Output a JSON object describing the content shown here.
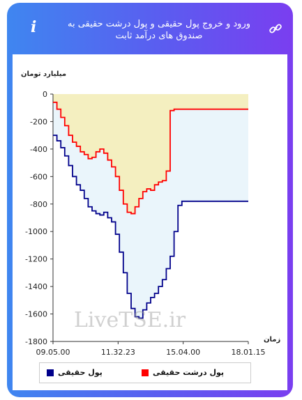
{
  "header": {
    "title": "ورود و خروج پول حقیقی و پول درشت حقیقی به صندوق های درآمد ثابت",
    "info_icon": "info-icon",
    "link_icon": "link-icon",
    "info_glyph": "i"
  },
  "watermark": "LiveTSE.ir",
  "colors": {
    "real_money": "#00008b",
    "big_real_money": "#ff0000",
    "upper_fill": "#f4efc0",
    "lower_fill": "#eaf5fb"
  },
  "chart_data": {
    "type": "line",
    "ylabel": "میلیارد تومان",
    "xlabel": "زمان",
    "ylim": [
      -1800,
      0
    ],
    "yticks": [
      0,
      -200,
      -400,
      -600,
      -800,
      -1000,
      -1200,
      -1400,
      -1600,
      -1800
    ],
    "xticks": [
      "09.05.00",
      "11.32.23",
      "15.04.00",
      "18.01.15"
    ],
    "xlim": [
      0,
      100
    ],
    "legend_position": "bottom",
    "series": [
      {
        "name": "پول حقیقی",
        "x": [
          0,
          2,
          4,
          6,
          8,
          10,
          12,
          14,
          16,
          18,
          20,
          22,
          24,
          26,
          28,
          30,
          32,
          34,
          36,
          38,
          40,
          42,
          44,
          46,
          48,
          50,
          52,
          54,
          56,
          58,
          60,
          62,
          64,
          66,
          68,
          70,
          72,
          74,
          76,
          100
        ],
        "y": [
          -300,
          -340,
          -390,
          -450,
          -520,
          -600,
          -660,
          -700,
          -760,
          -820,
          -850,
          -870,
          -880,
          -860,
          -900,
          -930,
          -1020,
          -1150,
          -1300,
          -1450,
          -1560,
          -1620,
          -1630,
          -1570,
          -1520,
          -1480,
          -1450,
          -1400,
          -1350,
          -1270,
          -1180,
          -1000,
          -810,
          -780,
          -780,
          -780,
          -780,
          -780,
          -780,
          -780
        ]
      },
      {
        "name": "پول درشت حقیقی",
        "x": [
          0,
          2,
          4,
          6,
          8,
          10,
          12,
          14,
          16,
          18,
          20,
          22,
          24,
          26,
          28,
          30,
          32,
          34,
          36,
          38,
          40,
          42,
          44,
          46,
          48,
          50,
          52,
          54,
          56,
          58,
          60,
          62,
          64,
          66,
          68,
          70,
          72,
          74,
          76,
          100
        ],
        "y": [
          -60,
          -110,
          -170,
          -230,
          -300,
          -350,
          -380,
          -420,
          -440,
          -470,
          -460,
          -420,
          -400,
          -430,
          -480,
          -530,
          -600,
          -700,
          -800,
          -860,
          -870,
          -820,
          -760,
          -710,
          -690,
          -700,
          -660,
          -640,
          -630,
          -560,
          -120,
          -110,
          -110,
          -110,
          -110,
          -110,
          -110,
          -110,
          -110,
          -110
        ]
      }
    ]
  }
}
